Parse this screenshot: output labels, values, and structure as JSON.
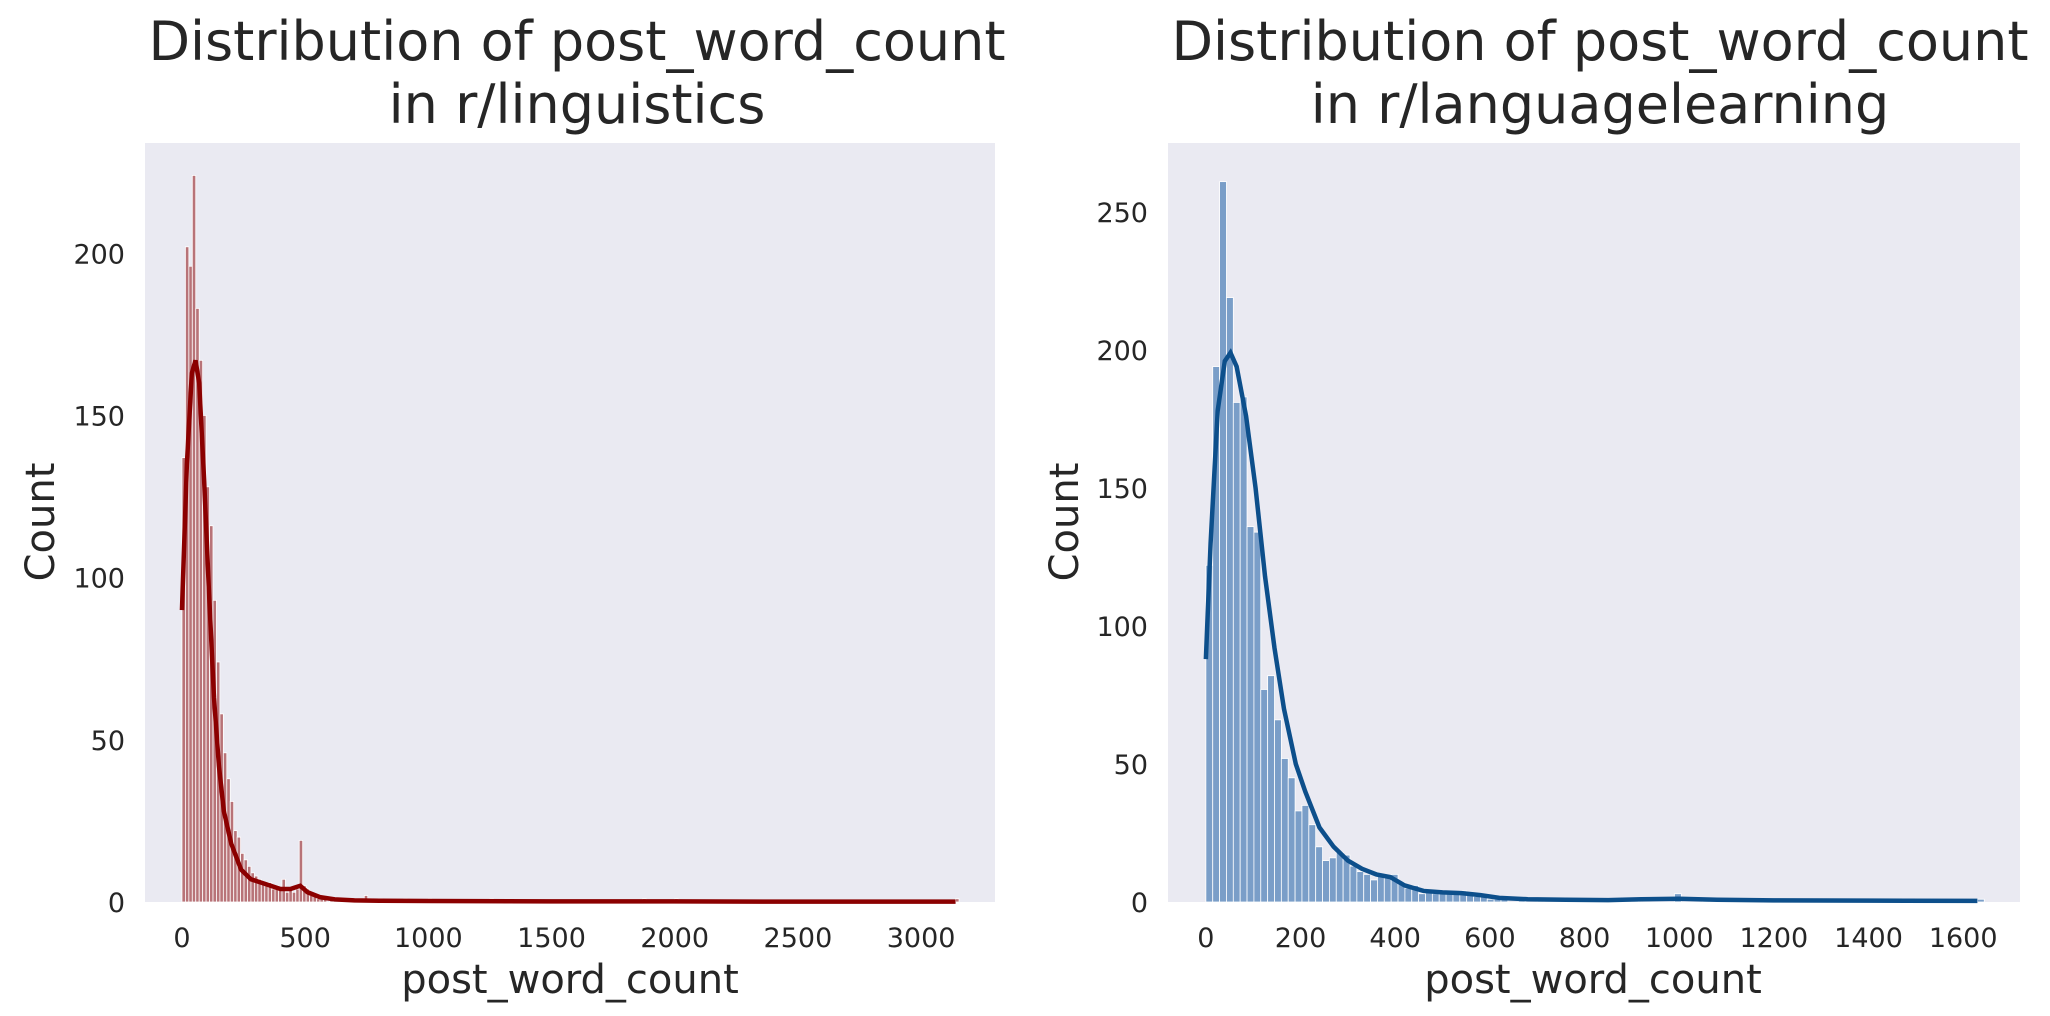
{
  "chart_data": [
    {
      "type": "bar",
      "subtype": "histogram-with-kde",
      "title_line1": "Distribution of post_word_count",
      "title_line2": "in r/linguistics",
      "xlabel": "post_word_count",
      "ylabel": "Count",
      "xlim": [
        -150,
        3300
      ],
      "ylim": [
        0,
        234
      ],
      "xticks": [
        0,
        500,
        1000,
        1500,
        2000,
        2500,
        3000
      ],
      "yticks": [
        0,
        50,
        100,
        150,
        200
      ],
      "grid": false,
      "bar_color": "#b87378",
      "line_color": "#8b0000",
      "bin_width": 14,
      "bins": [
        [
          0,
          137
        ],
        [
          14,
          202
        ],
        [
          28,
          196
        ],
        [
          42,
          224
        ],
        [
          56,
          183
        ],
        [
          70,
          167
        ],
        [
          84,
          150
        ],
        [
          98,
          128
        ],
        [
          112,
          116
        ],
        [
          126,
          93
        ],
        [
          140,
          74
        ],
        [
          154,
          58
        ],
        [
          168,
          46
        ],
        [
          182,
          38
        ],
        [
          196,
          31
        ],
        [
          210,
          22
        ],
        [
          224,
          20
        ],
        [
          238,
          15
        ],
        [
          252,
          13
        ],
        [
          266,
          11
        ],
        [
          280,
          9
        ],
        [
          294,
          8
        ],
        [
          308,
          7
        ],
        [
          322,
          6
        ],
        [
          336,
          5
        ],
        [
          350,
          6
        ],
        [
          364,
          4
        ],
        [
          378,
          5
        ],
        [
          392,
          4
        ],
        [
          406,
          7
        ],
        [
          420,
          3
        ],
        [
          434,
          4
        ],
        [
          448,
          3
        ],
        [
          462,
          4
        ],
        [
          476,
          19
        ],
        [
          490,
          5
        ],
        [
          504,
          4
        ],
        [
          518,
          2
        ],
        [
          532,
          2
        ],
        [
          546,
          1
        ],
        [
          560,
          1
        ],
        [
          574,
          1
        ],
        [
          600,
          1
        ],
        [
          640,
          1
        ],
        [
          680,
          1
        ],
        [
          740,
          2
        ],
        [
          760,
          1
        ],
        [
          800,
          1
        ],
        [
          900,
          1
        ],
        [
          1000,
          1
        ],
        [
          1250,
          1
        ],
        [
          1870,
          1
        ],
        [
          2000,
          1
        ],
        [
          3140,
          1
        ]
      ],
      "kde": [
        [
          0,
          90
        ],
        [
          20,
          135
        ],
        [
          40,
          163
        ],
        [
          55,
          167
        ],
        [
          70,
          160
        ],
        [
          90,
          130
        ],
        [
          110,
          95
        ],
        [
          130,
          63
        ],
        [
          150,
          42
        ],
        [
          170,
          28
        ],
        [
          200,
          18
        ],
        [
          240,
          10
        ],
        [
          280,
          7
        ],
        [
          320,
          6
        ],
        [
          360,
          5
        ],
        [
          400,
          4
        ],
        [
          440,
          4
        ],
        [
          480,
          5
        ],
        [
          510,
          3
        ],
        [
          560,
          1.5
        ],
        [
          620,
          0.8
        ],
        [
          700,
          0.5
        ],
        [
          800,
          0.4
        ],
        [
          1000,
          0.3
        ],
        [
          1500,
          0.2
        ],
        [
          2000,
          0.2
        ],
        [
          2500,
          0.1
        ],
        [
          3140,
          0.1
        ]
      ]
    },
    {
      "type": "bar",
      "subtype": "histogram-with-kde",
      "title_line1": "Distribution of post_word_count",
      "title_line2": "in r/languagelearning",
      "xlabel": "post_word_count",
      "ylabel": "Count",
      "xlim": [
        -80,
        1720
      ],
      "ylim": [
        0,
        275
      ],
      "xticks": [
        0,
        200,
        400,
        600,
        800,
        1000,
        1200,
        1400,
        1600
      ],
      "yticks": [
        0,
        50,
        100,
        150,
        200,
        250
      ],
      "grid": false,
      "bar_color": "#7a9ec8",
      "line_color": "#0d4f8b",
      "bin_width": 14.5,
      "bins": [
        [
          0,
          122
        ],
        [
          14.5,
          194
        ],
        [
          29,
          261
        ],
        [
          43.5,
          219
        ],
        [
          58,
          181
        ],
        [
          72.5,
          183
        ],
        [
          87,
          136
        ],
        [
          101.5,
          134
        ],
        [
          116,
          77
        ],
        [
          130.5,
          82
        ],
        [
          145,
          66
        ],
        [
          159.5,
          52
        ],
        [
          174,
          45
        ],
        [
          188.5,
          33
        ],
        [
          203,
          35
        ],
        [
          217.5,
          28
        ],
        [
          232,
          20
        ],
        [
          246.5,
          15
        ],
        [
          261,
          16
        ],
        [
          275.5,
          18
        ],
        [
          290,
          17
        ],
        [
          304.5,
          13
        ],
        [
          319,
          11
        ],
        [
          333.5,
          10
        ],
        [
          348,
          8
        ],
        [
          362.5,
          10
        ],
        [
          377,
          9
        ],
        [
          391.5,
          10
        ],
        [
          406,
          7
        ],
        [
          420.5,
          5
        ],
        [
          435,
          6
        ],
        [
          449.5,
          3
        ],
        [
          464,
          4
        ],
        [
          478.5,
          3
        ],
        [
          493,
          4
        ],
        [
          507.5,
          4
        ],
        [
          522,
          3
        ],
        [
          536.5,
          4
        ],
        [
          551,
          3
        ],
        [
          565.5,
          2
        ],
        [
          580,
          2
        ],
        [
          594.5,
          1
        ],
        [
          609,
          1
        ],
        [
          623.5,
          1
        ],
        [
          660,
          1
        ],
        [
          700,
          1
        ],
        [
          760,
          1
        ],
        [
          830,
          1
        ],
        [
          900,
          1
        ],
        [
          990,
          3
        ],
        [
          1050,
          1
        ],
        [
          1150,
          1
        ],
        [
          1300,
          1
        ],
        [
          1450,
          1
        ],
        [
          1630,
          1
        ]
      ],
      "kde": [
        [
          0,
          88
        ],
        [
          10,
          130
        ],
        [
          25,
          178
        ],
        [
          40,
          196
        ],
        [
          52,
          199
        ],
        [
          65,
          194
        ],
        [
          85,
          176
        ],
        [
          105,
          150
        ],
        [
          125,
          118
        ],
        [
          145,
          92
        ],
        [
          165,
          70
        ],
        [
          190,
          50
        ],
        [
          210,
          40
        ],
        [
          240,
          27
        ],
        [
          270,
          20
        ],
        [
          300,
          15
        ],
        [
          330,
          12
        ],
        [
          360,
          10
        ],
        [
          390,
          9
        ],
        [
          420,
          6
        ],
        [
          460,
          4
        ],
        [
          500,
          3.5
        ],
        [
          540,
          3.2
        ],
        [
          580,
          2.5
        ],
        [
          620,
          1.5
        ],
        [
          680,
          1
        ],
        [
          760,
          0.8
        ],
        [
          850,
          0.7
        ],
        [
          920,
          1
        ],
        [
          1000,
          1.2
        ],
        [
          1080,
          0.8
        ],
        [
          1200,
          0.6
        ],
        [
          1400,
          0.5
        ],
        [
          1630,
          0.4
        ]
      ]
    }
  ]
}
